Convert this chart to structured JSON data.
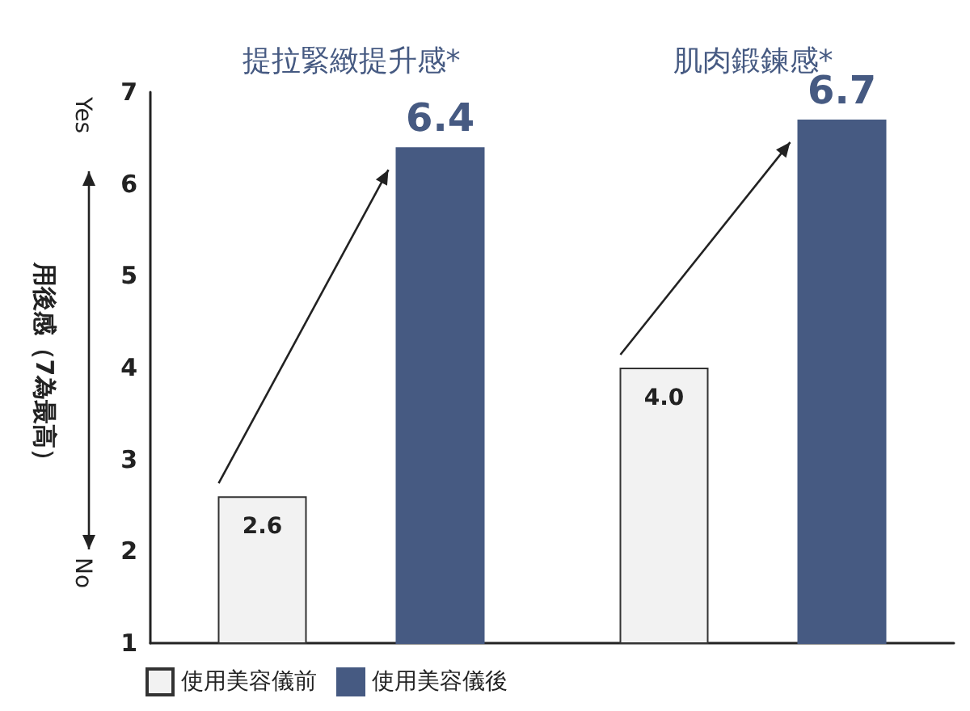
{
  "chart_data": {
    "type": "bar",
    "categories": [
      "提拉緊緻提升感*",
      "肌肉鍛鍊感*"
    ],
    "series": [
      {
        "name": "使用美容儀前",
        "color": "#f2f2f2",
        "values": [
          2.6,
          4.0
        ],
        "value_labels": [
          "2.6",
          "4.0"
        ]
      },
      {
        "name": "使用美容儀後",
        "color": "#465a82",
        "values": [
          6.4,
          6.7
        ],
        "value_labels": [
          "6.4",
          "6.7"
        ]
      }
    ],
    "ylabel": "用後感（7為最高）",
    "annotations": [
      "Yes",
      "No"
    ],
    "ylim": [
      1,
      7
    ],
    "yticks": [
      1,
      2,
      3,
      4,
      5,
      6,
      7
    ],
    "grid": false,
    "legend": "bottom left"
  }
}
